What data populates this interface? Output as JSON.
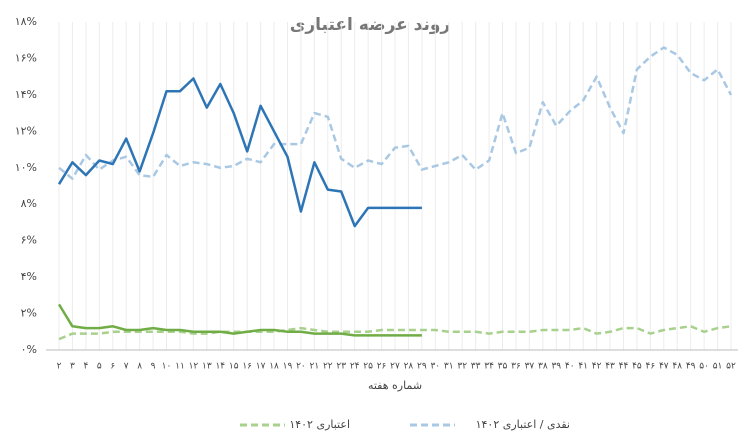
{
  "chart_data": {
    "type": "line",
    "title": "روند عرضه اعتباری",
    "xlabel": "شماره هفته",
    "categories": [
      "۲",
      "۳",
      "۴",
      "۵",
      "۶",
      "۷",
      "۸",
      "۹",
      "۱۰",
      "۱۱",
      "۱۲",
      "۱۳",
      "۱۴",
      "۱۵",
      "۱۶",
      "۱۷",
      "۱۸",
      "۱۹",
      "۲۰",
      "۲۱",
      "۲۲",
      "۲۳",
      "۲۴",
      "۲۵",
      "۲۶",
      "۲۷",
      "۲۸",
      "۲۹",
      "۳۰",
      "۳۱",
      "۳۲",
      "۳۳",
      "۳۴",
      "۳۵",
      "۳۶",
      "۳۷",
      "۳۸",
      "۳۹",
      "۴۰",
      "۴۱",
      "۴۲",
      "۴۳",
      "۴۴",
      "۴۵",
      "۴۶",
      "۴۷",
      "۴۸",
      "۴۹",
      "۵۰",
      "۵۱",
      "۵۲"
    ],
    "ylim": [
      0,
      18
    ],
    "yticks": [
      {
        "value": 0,
        "label": "۰%"
      },
      {
        "value": 2,
        "label": "۲%"
      },
      {
        "value": 4,
        "label": "۴%"
      },
      {
        "value": 6,
        "label": "۶%"
      },
      {
        "value": 8,
        "label": "۸%"
      },
      {
        "value": 10,
        "label": "۱۰%"
      },
      {
        "value": 12,
        "label": "۱۲%"
      },
      {
        "value": 14,
        "label": "۱۴%"
      },
      {
        "value": 16,
        "label": "۱۶%"
      },
      {
        "value": 18,
        "label": "۱۸%"
      }
    ],
    "xgrid": true,
    "legend": "bottom",
    "series": [
      {
        "name": "نقدی / اعتباری ۱۴۰۲",
        "color": "#a9c8e4",
        "dash": true,
        "values": [
          10.0,
          9.4,
          10.7,
          9.9,
          10.4,
          10.6,
          9.6,
          9.5,
          10.7,
          10.1,
          10.3,
          10.2,
          10.0,
          10.1,
          10.5,
          10.3,
          11.3,
          11.3,
          11.3,
          13.0,
          12.8,
          10.5,
          10.0,
          10.4,
          10.2,
          11.1,
          11.2,
          9.9,
          10.1,
          10.3,
          10.7,
          9.9,
          10.4,
          13.0,
          10.8,
          11.1,
          13.6,
          12.3,
          13.1,
          13.7,
          15.0,
          13.3,
          11.9,
          15.4,
          16.1,
          16.6,
          16.2,
          15.2,
          14.8,
          15.4,
          14.0
        ]
      },
      {
        "name": "اعتباری ۱۴۰۲",
        "color": "#a9d18e",
        "dash": true,
        "values": [
          0.6,
          0.9,
          0.9,
          0.9,
          1.0,
          1.0,
          1.0,
          1.0,
          1.0,
          1.0,
          0.9,
          0.9,
          1.0,
          1.0,
          1.0,
          1.0,
          1.0,
          1.1,
          1.2,
          1.1,
          1.0,
          1.0,
          1.0,
          1.0,
          1.1,
          1.1,
          1.1,
          1.1,
          1.1,
          1.0,
          1.0,
          1.0,
          0.9,
          1.0,
          1.0,
          1.0,
          1.1,
          1.1,
          1.1,
          1.2,
          0.9,
          1.0,
          1.2,
          1.2,
          0.9,
          1.1,
          1.2,
          1.3,
          1.0,
          1.2,
          1.3
        ]
      },
      {
        "color": "#2e75b6",
        "dash": false,
        "values": [
          9.1,
          10.3,
          9.6,
          10.4,
          10.2,
          11.6,
          9.8,
          11.9,
          14.2,
          14.2,
          14.9,
          13.3,
          14.6,
          13.0,
          10.9,
          13.4,
          12.0,
          10.6,
          7.6,
          10.3,
          8.8,
          8.7,
          6.8,
          7.8,
          7.8,
          7.8,
          7.8,
          7.8,
          null,
          null,
          null,
          null,
          null,
          null,
          null,
          null,
          null,
          null,
          null,
          null,
          null,
          null,
          null,
          null,
          null,
          null,
          null,
          null,
          null,
          null,
          null
        ]
      },
      {
        "color": "#70ad47",
        "dash": false,
        "values": [
          2.5,
          1.3,
          1.2,
          1.2,
          1.3,
          1.1,
          1.1,
          1.2,
          1.1,
          1.1,
          1.0,
          1.0,
          1.0,
          0.9,
          1.0,
          1.1,
          1.1,
          1.0,
          1.0,
          0.9,
          0.9,
          0.9,
          0.8,
          0.8,
          0.8,
          0.8,
          0.8,
          0.8,
          null,
          null,
          null,
          null,
          null,
          null,
          null,
          null,
          null,
          null,
          null,
          null,
          null,
          null,
          null,
          null,
          null,
          null,
          null,
          null,
          null,
          null,
          null
        ]
      }
    ]
  }
}
